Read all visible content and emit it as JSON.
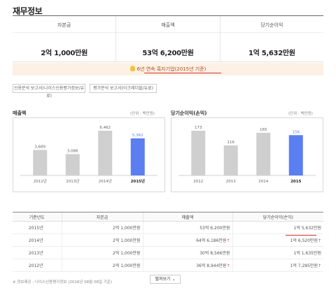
{
  "page_title": "재무정보",
  "summary": [
    {
      "label": "자본금",
      "value": "2억 1,000만원"
    },
    {
      "label": "매출액",
      "value": "53억 6,200만원"
    },
    {
      "label": "당기순이익",
      "value": "1억 5,632만원"
    }
  ],
  "banner": {
    "text": "6년 연속 흑자기업(2015년 기준)",
    "icon": "bulb-icon"
  },
  "reports": [
    "신용분석 보고서(나이스신용평가정보/유료)",
    "평가분석 보고서(이크레더블/유료)"
  ],
  "chart_data": [
    {
      "type": "bar",
      "title": "매출액",
      "unit": "(단위 : 백만원)",
      "categories": [
        "2012년",
        "2013년",
        "2014년",
        "2015년"
      ],
      "values": [
        3689,
        3086,
        6462,
        5362
      ],
      "value_labels": [
        "3,689",
        "3,086",
        "6,462",
        "5,362"
      ],
      "highlight_index": 3,
      "colors": {
        "bar": "#cfcfcf",
        "highlight": "#5b7ff0"
      }
    },
    {
      "type": "bar",
      "title": "당기순이익(손익)",
      "unit": "(단위 : 백만원)",
      "categories": [
        "2012",
        "2013",
        "2014",
        "2015"
      ],
      "values": [
        173,
        116,
        165,
        156
      ],
      "value_labels": [
        "173",
        "116",
        "165",
        "156"
      ],
      "highlight_index": 3,
      "colors": {
        "bar": "#cfcfcf",
        "highlight": "#5b7ff0"
      }
    }
  ],
  "table": {
    "headers": [
      "기준년도",
      "자본금",
      "매출액",
      "당기순이익(손익)"
    ],
    "rows": [
      {
        "year": "2015년",
        "capital": "2억 1,000만원",
        "sales": "53억 6,200만원",
        "sales_up": "",
        "profit": "1억 5,632만원",
        "profit_up": ""
      },
      {
        "year": "2014년",
        "capital": "2억 1,000만원",
        "sales": "64억 6,186만원",
        "sales_up": "↑",
        "profit": "1억 6,520만원",
        "profit_up": "↑"
      },
      {
        "year": "2013년",
        "capital": "2억 1,000만원",
        "sales": "30억 8,566만원",
        "sales_up": "",
        "profit": "1억 1,635만원",
        "profit_up": ""
      },
      {
        "year": "2012년",
        "capital": "2억 1,000만원",
        "sales": "36억 8,944만원",
        "sales_up": "↑",
        "profit": "1억 7,285만원",
        "profit_up": "↑"
      }
    ]
  },
  "footer_note": "※ 정보제공 : 나이스신용평가정보 (2016년 08월 08일 기준)",
  "more_button": "펼쳐보기 ⌄",
  "colors": {
    "accent_blue": "#5b7ff0",
    "alert_red": "#e53935"
  }
}
